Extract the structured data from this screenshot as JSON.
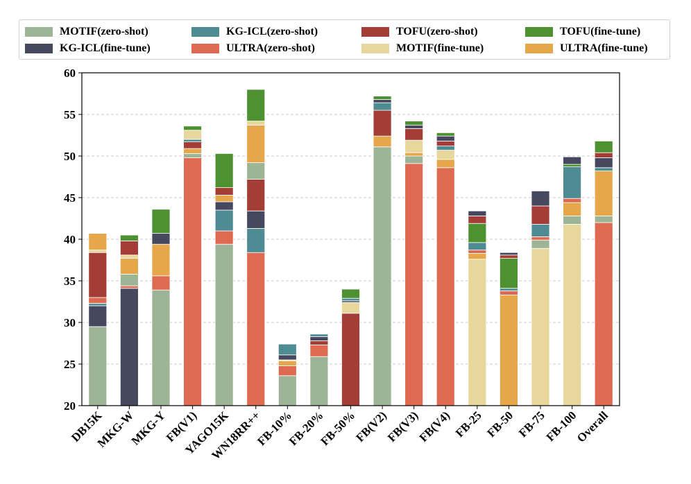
{
  "chart_data": {
    "type": "bar",
    "stacked": true,
    "title": "",
    "xlabel": "",
    "ylabel": "",
    "ylim": [
      20,
      60
    ],
    "yticks": [
      20,
      25,
      30,
      35,
      40,
      45,
      50,
      55,
      60
    ],
    "grid": "horizontal dashed",
    "legend_position": "top",
    "categories": [
      "DB15K",
      "MKG-W",
      "MKG-Y",
      "FB(V1)",
      "YAGO15K",
      "WN18RR++",
      "FB-10%",
      "FB-20%",
      "FB-50%",
      "FB(V2)",
      "FB(V3)",
      "FB(V4)",
      "FB-25",
      "FB-50",
      "FB-75",
      "FB-100",
      "Overall"
    ],
    "legend": [
      {
        "name": "MOTIF(zero-shot)",
        "color": "#9db596"
      },
      {
        "name": "KG-ICL(zero-shot)",
        "color": "#4e8b93"
      },
      {
        "name": "TOFU(zero-shot)",
        "color": "#a33d35"
      },
      {
        "name": "TOFU(fine-tune)",
        "color": "#4e9130"
      },
      {
        "name": "KG-ICL(fine-tune)",
        "color": "#464860"
      },
      {
        "name": "ULTRA(zero-shot)",
        "color": "#de6b51"
      },
      {
        "name": "MOTIF(fine-tune)",
        "color": "#e8d79d"
      },
      {
        "name": "ULTRA(fine-tune)",
        "color": "#e6a74a"
      }
    ],
    "stacks": [
      [
        [
          "MOTIF(zero-shot)",
          29.5
        ],
        [
          "KG-ICL(fine-tune)",
          32.0
        ],
        [
          "KG-ICL(zero-shot)",
          32.3
        ],
        [
          "ULTRA(zero-shot)",
          33.0
        ],
        [
          "TOFU(zero-shot)",
          38.4
        ],
        [
          "MOTIF(fine-tune)",
          38.7
        ],
        [
          "ULTRA(fine-tune)",
          40.7
        ]
      ],
      [
        [
          "KG-ICL(fine-tune)",
          34.1
        ],
        [
          "ULTRA(zero-shot)",
          34.4
        ],
        [
          "MOTIF(zero-shot)",
          35.8
        ],
        [
          "ULTRA(fine-tune)",
          37.7
        ],
        [
          "MOTIF(fine-tune)",
          38.1
        ],
        [
          "TOFU(zero-shot)",
          39.8
        ],
        [
          "TOFU(fine-tune)",
          40.5
        ]
      ],
      [
        [
          "MOTIF(zero-shot)",
          33.9
        ],
        [
          "ULTRA(zero-shot)",
          35.6
        ],
        [
          "ULTRA(fine-tune)",
          39.4
        ],
        [
          "KG-ICL(fine-tune)",
          40.7
        ],
        [
          "TOFU(fine-tune)",
          43.6
        ]
      ],
      [
        [
          "ULTRA(zero-shot)",
          49.8
        ],
        [
          "MOTIF(zero-shot)",
          50.3
        ],
        [
          "ULTRA(fine-tune)",
          50.9
        ],
        [
          "TOFU(zero-shot)",
          51.7
        ],
        [
          "KG-ICL(zero-shot)",
          52.0
        ],
        [
          "MOTIF(fine-tune)",
          53.1
        ],
        [
          "TOFU(fine-tune)",
          53.6
        ]
      ],
      [
        [
          "MOTIF(zero-shot)",
          39.4
        ],
        [
          "ULTRA(zero-shot)",
          41.0
        ],
        [
          "KG-ICL(zero-shot)",
          43.5
        ],
        [
          "KG-ICL(fine-tune)",
          44.5
        ],
        [
          "ULTRA(fine-tune)",
          45.3
        ],
        [
          "TOFU(zero-shot)",
          46.2
        ],
        [
          "TOFU(fine-tune)",
          50.3
        ]
      ],
      [
        [
          "ULTRA(zero-shot)",
          38.4
        ],
        [
          "KG-ICL(zero-shot)",
          41.3
        ],
        [
          "KG-ICL(fine-tune)",
          43.4
        ],
        [
          "TOFU(zero-shot)",
          47.2
        ],
        [
          "MOTIF(zero-shot)",
          49.2
        ],
        [
          "ULTRA(fine-tune)",
          53.7
        ],
        [
          "MOTIF(fine-tune)",
          54.2
        ],
        [
          "TOFU(fine-tune)",
          58.0
        ]
      ],
      [
        [
          "MOTIF(zero-shot)",
          23.6
        ],
        [
          "ULTRA(zero-shot)",
          24.8
        ],
        [
          "ULTRA(fine-tune)",
          25.4
        ],
        [
          "MOTIF(fine-tune)",
          25.5
        ],
        [
          "KG-ICL(fine-tune)",
          26.1
        ],
        [
          "KG-ICL(zero-shot)",
          27.4
        ]
      ],
      [
        [
          "MOTIF(zero-shot)",
          25.9
        ],
        [
          "ULTRA(zero-shot)",
          27.3
        ],
        [
          "TOFU(zero-shot)",
          27.8
        ],
        [
          "KG-ICL(fine-tune)",
          28.3
        ],
        [
          "KG-ICL(zero-shot)",
          28.6
        ]
      ],
      [
        [
          "TOFU(zero-shot)",
          31.1
        ],
        [
          "MOTIF(fine-tune)",
          32.4
        ],
        [
          "KG-ICL(fine-tune)",
          32.6
        ],
        [
          "KG-ICL(zero-shot)",
          32.9
        ],
        [
          "TOFU(fine-tune)",
          34.0
        ]
      ],
      [
        [
          "MOTIF(zero-shot)",
          51.1
        ],
        [
          "ULTRA(fine-tune)",
          52.4
        ],
        [
          "TOFU(zero-shot)",
          55.5
        ],
        [
          "KG-ICL(zero-shot)",
          56.4
        ],
        [
          "KG-ICL(fine-tune)",
          56.8
        ],
        [
          "TOFU(fine-tune)",
          57.2
        ]
      ],
      [
        [
          "ULTRA(zero-shot)",
          49.1
        ],
        [
          "MOTIF(zero-shot)",
          50.0
        ],
        [
          "ULTRA(fine-tune)",
          50.4
        ],
        [
          "MOTIF(fine-tune)",
          51.9
        ],
        [
          "TOFU(zero-shot)",
          53.3
        ],
        [
          "KG-ICL(fine-tune)",
          53.7
        ],
        [
          "TOFU(fine-tune)",
          54.2
        ]
      ],
      [
        [
          "ULTRA(zero-shot)",
          48.6
        ],
        [
          "ULTRA(fine-tune)",
          49.6
        ],
        [
          "MOTIF(fine-tune)",
          50.7
        ],
        [
          "KG-ICL(zero-shot)",
          51.2
        ],
        [
          "TOFU(zero-shot)",
          51.8
        ],
        [
          "KG-ICL(fine-tune)",
          52.4
        ],
        [
          "TOFU(fine-tune)",
          52.8
        ]
      ],
      [
        [
          "MOTIF(fine-tune)",
          37.6
        ],
        [
          "ULTRA(fine-tune)",
          38.3
        ],
        [
          "ULTRA(zero-shot)",
          38.7
        ],
        [
          "KG-ICL(zero-shot)",
          39.6
        ],
        [
          "TOFU(fine-tune)",
          41.9
        ],
        [
          "TOFU(zero-shot)",
          42.8
        ],
        [
          "KG-ICL(fine-tune)",
          43.4
        ]
      ],
      [
        [
          "ULTRA(fine-tune)",
          33.3
        ],
        [
          "ULTRA(zero-shot)",
          33.8
        ],
        [
          "KG-ICL(zero-shot)",
          34.1
        ],
        [
          "TOFU(fine-tune)",
          37.7
        ],
        [
          "TOFU(zero-shot)",
          38.1
        ],
        [
          "KG-ICL(fine-tune)",
          38.4
        ]
      ],
      [
        [
          "MOTIF(fine-tune)",
          38.9
        ],
        [
          "MOTIF(zero-shot)",
          39.9
        ],
        [
          "ULTRA(zero-shot)",
          40.3
        ],
        [
          "KG-ICL(zero-shot)",
          41.8
        ],
        [
          "TOFU(zero-shot)",
          44.0
        ],
        [
          "KG-ICL(fine-tune)",
          45.8
        ]
      ],
      [
        [
          "MOTIF(fine-tune)",
          41.8
        ],
        [
          "MOTIF(zero-shot)",
          42.8
        ],
        [
          "ULTRA(fine-tune)",
          44.4
        ],
        [
          "ULTRA(zero-shot)",
          44.9
        ],
        [
          "KG-ICL(zero-shot)",
          48.7
        ],
        [
          "TOFU(fine-tune)",
          49.0
        ],
        [
          "KG-ICL(fine-tune)",
          49.9
        ]
      ],
      [
        [
          "ULTRA(zero-shot)",
          42.0
        ],
        [
          "MOTIF(zero-shot)",
          42.8
        ],
        [
          "ULTRA(fine-tune)",
          48.2
        ],
        [
          "KG-ICL(zero-shot)",
          48.6
        ],
        [
          "KG-ICL(fine-tune)",
          49.8
        ],
        [
          "TOFU(zero-shot)",
          50.4
        ],
        [
          "TOFU(fine-tune)",
          51.8
        ]
      ]
    ]
  }
}
